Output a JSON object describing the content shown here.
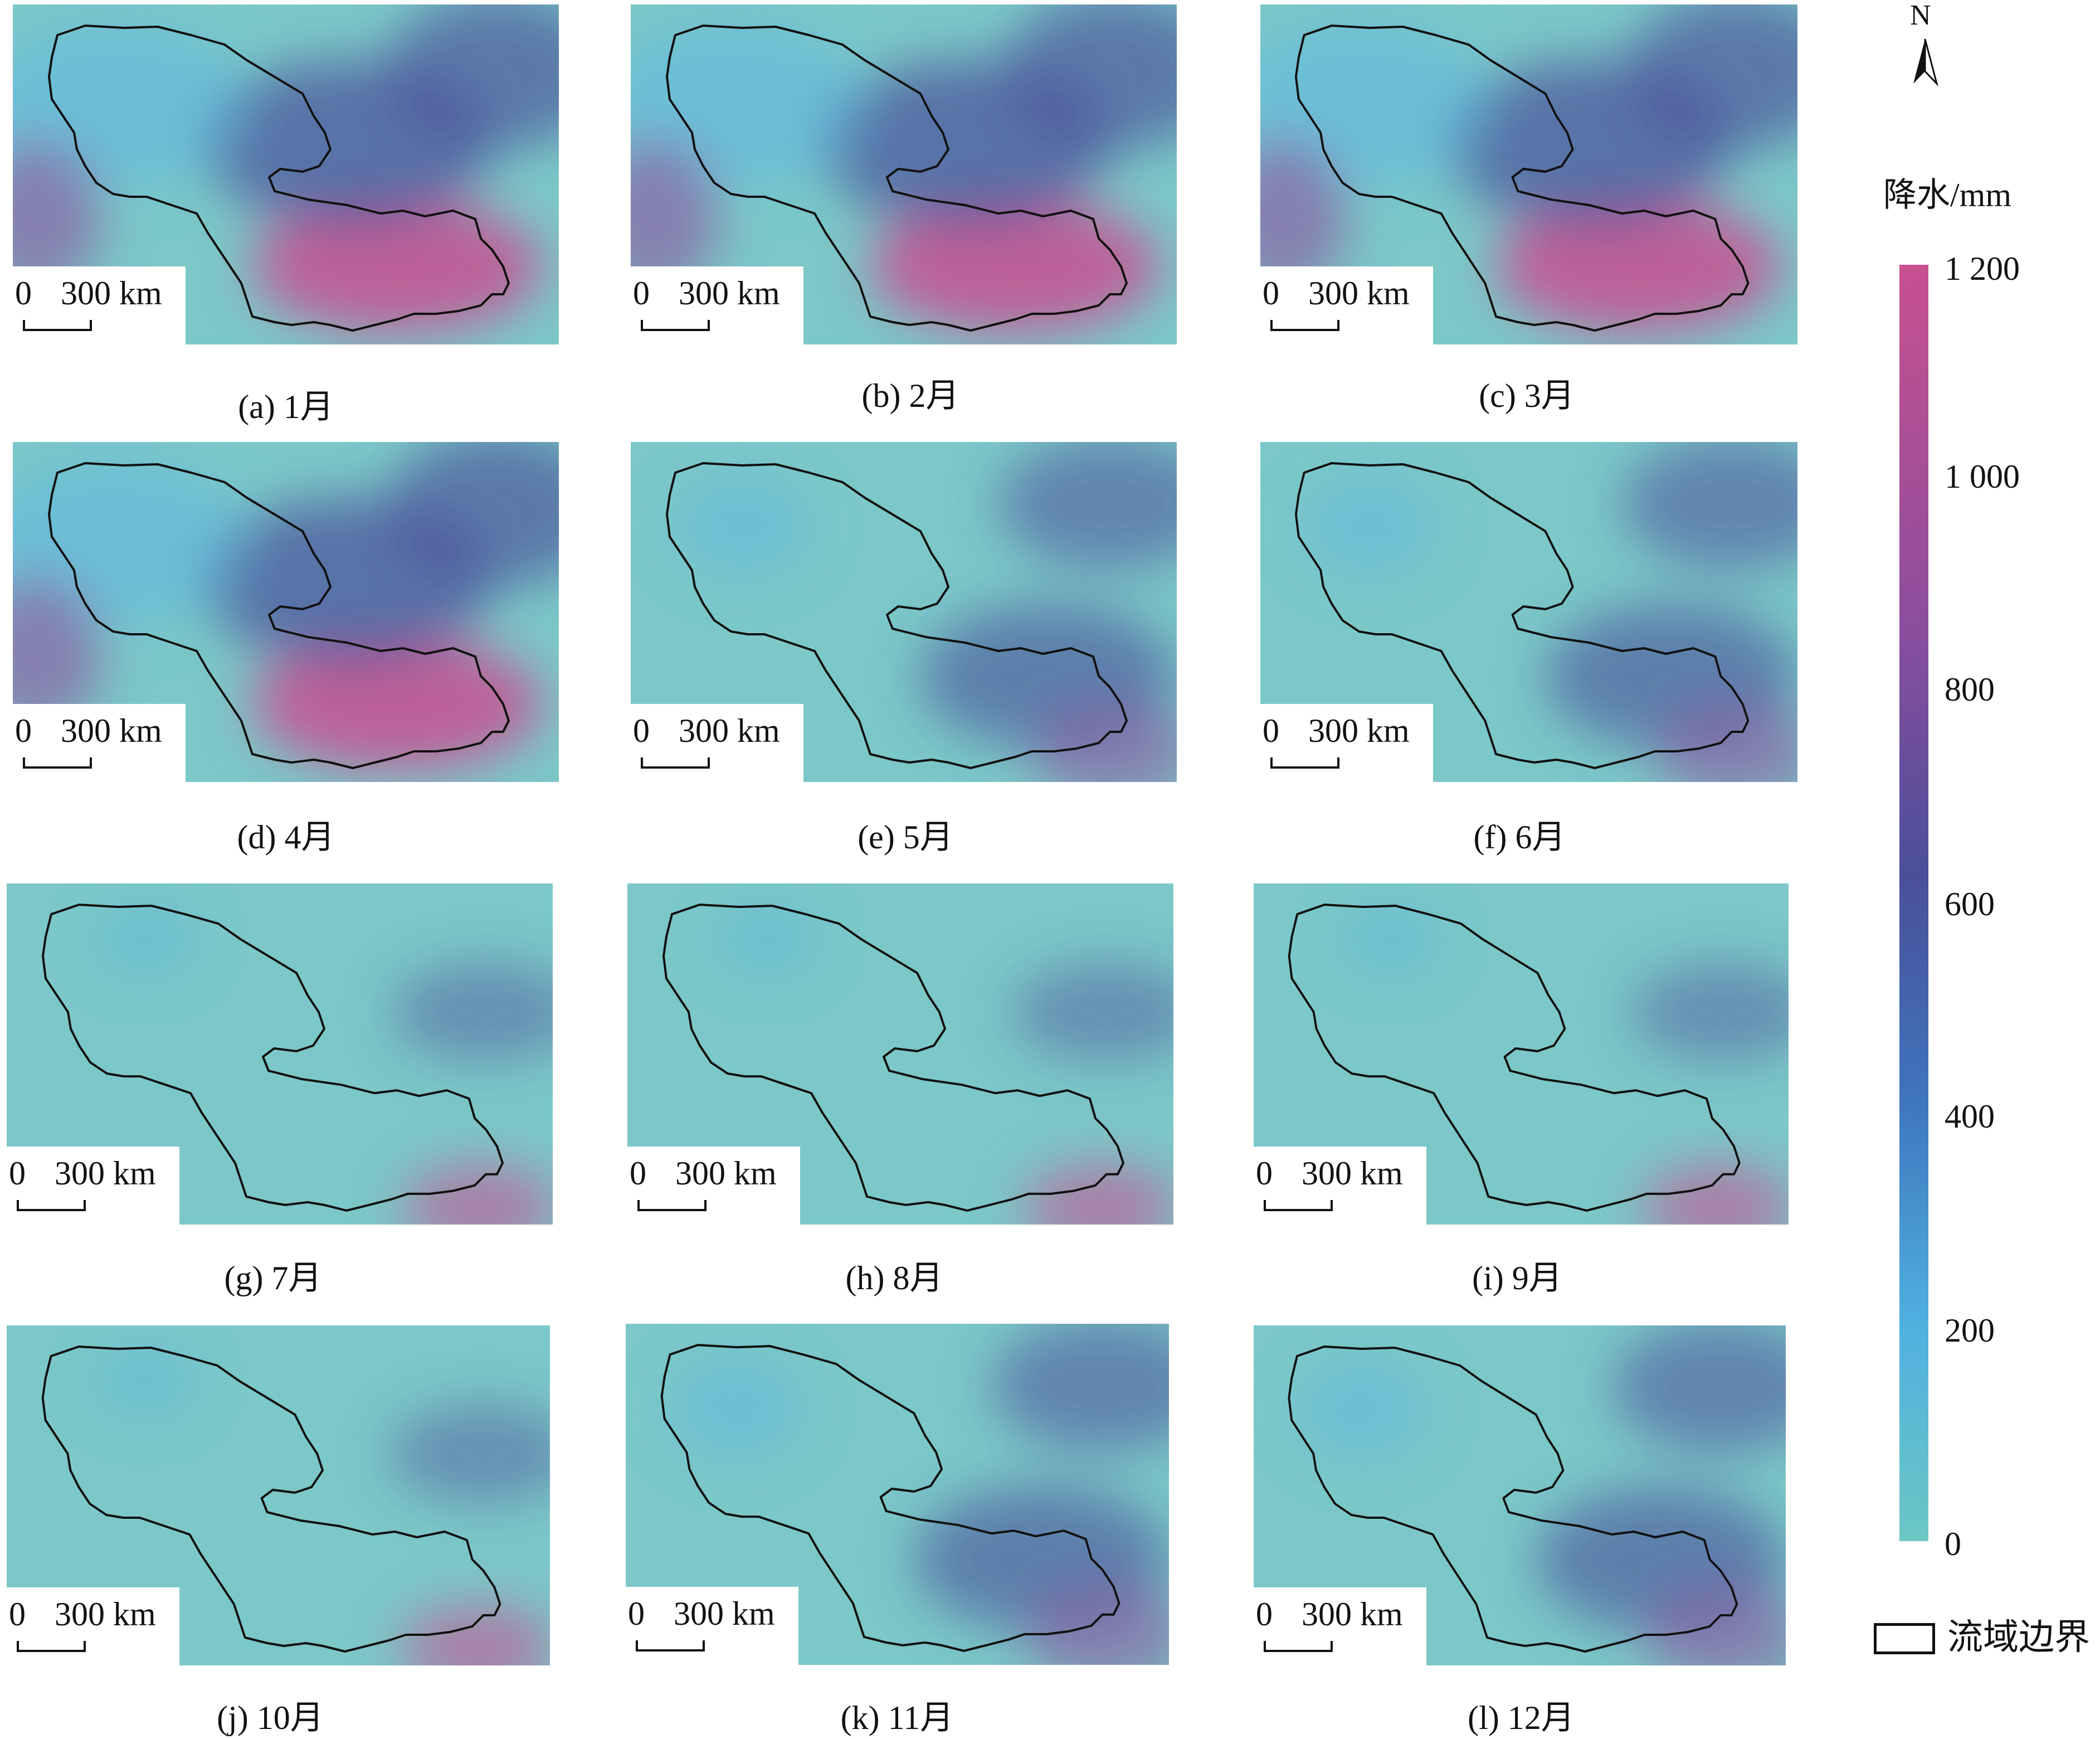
{
  "scale_bar": {
    "zero": "0",
    "distance": "300 km"
  },
  "panels": [
    {
      "caption": "(a) 1月",
      "style": "high"
    },
    {
      "caption": "(b) 2月",
      "style": "high"
    },
    {
      "caption": "(c) 3月",
      "style": "high"
    },
    {
      "caption": "(d) 4月",
      "style": "high"
    },
    {
      "caption": "(e) 5月",
      "style": "mid"
    },
    {
      "caption": "(f) 6月",
      "style": "mid"
    },
    {
      "caption": "(g) 7月",
      "style": "low"
    },
    {
      "caption": "(h) 8月",
      "style": "low"
    },
    {
      "caption": "(i) 9月",
      "style": "low"
    },
    {
      "caption": "(j) 10月",
      "style": "low"
    },
    {
      "caption": "(k) 11月",
      "style": "mid"
    },
    {
      "caption": "(l) 12月",
      "style": "mid"
    }
  ],
  "legend": {
    "north_label": "N",
    "title": "降水/mm",
    "ticks": [
      "1 200",
      "1 000",
      "800",
      "600",
      "400",
      "200",
      "0"
    ],
    "colors": [
      "#c8508f",
      "#8c4e9e",
      "#4a4f9a",
      "#3f74bc",
      "#4fb0e0",
      "#6cc7c4"
    ],
    "boundary_label": "流域边界"
  }
}
